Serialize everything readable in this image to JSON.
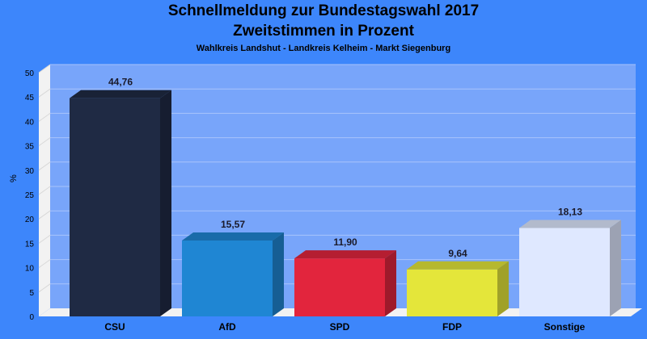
{
  "chart_data": {
    "type": "bar",
    "title": "Schnellmeldung zur Bundestagswahl 2017",
    "title_line2": "Zweitstimmen in Prozent",
    "subtitle": "Wahlkreis Landshut - Landkreis Kelheim - Markt Siegenburg",
    "ylabel": "%",
    "xlabel": "",
    "ylim": [
      0,
      50
    ],
    "yticks": [
      "0",
      "5",
      "10",
      "15",
      "20",
      "25",
      "30",
      "35",
      "40",
      "45",
      "50"
    ],
    "grid": true,
    "categories": [
      "CSU",
      "AfD",
      "SPD",
      "FDP",
      "Sonstige"
    ],
    "values": [
      44.76,
      15.57,
      11.9,
      9.64,
      18.13
    ],
    "value_labels": [
      "44,76",
      "15,57",
      "11,90",
      "9,64",
      "18,13"
    ],
    "colors": [
      "#1f2a44",
      "#1f86d3",
      "#e2253d",
      "#e4e63a",
      "#dfe8ff"
    ],
    "background_color": "#3d86fb",
    "plot_color": "#78a5fa"
  }
}
